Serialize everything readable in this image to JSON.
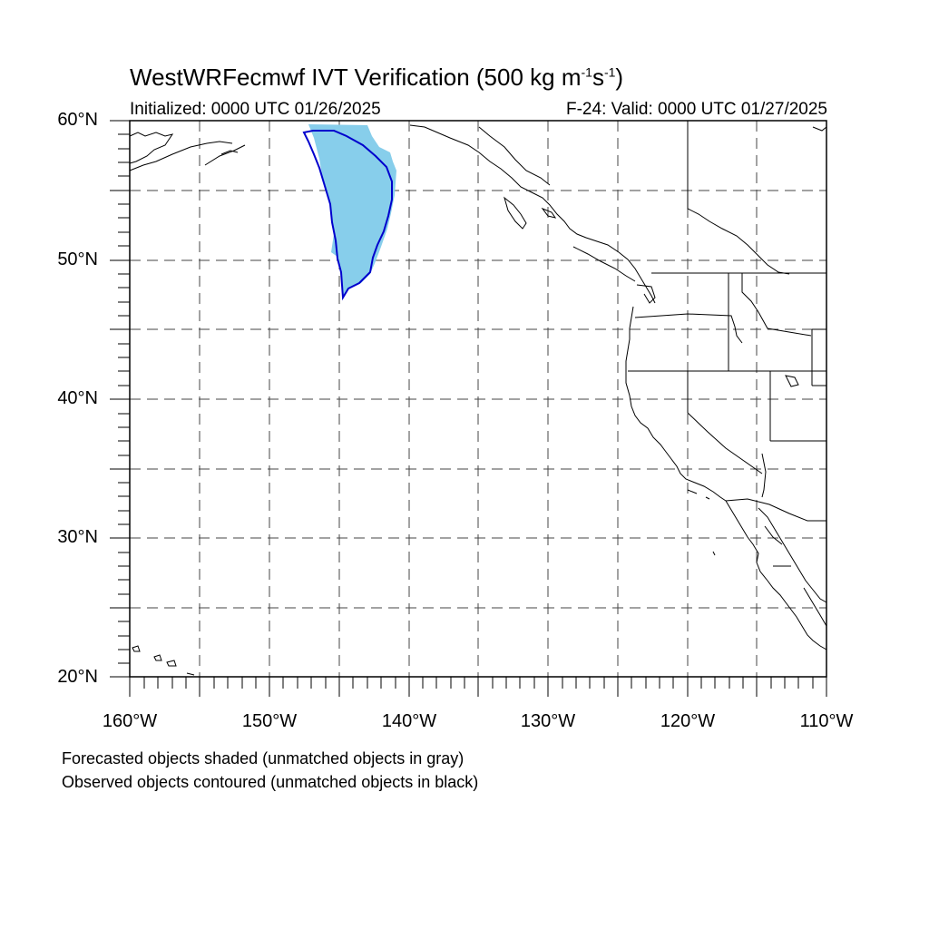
{
  "header": {
    "title_main": "WestWRFecmwf IVT Verification (500 kg m",
    "title_exp1": "-1",
    "title_mid": "s",
    "title_exp2": "-1",
    "title_end": ")",
    "initialized": "Initialized: 0000 UTC 01/26/2025",
    "valid": "F-24: Valid: 0000 UTC 01/27/2025"
  },
  "axes": {
    "lat_labels": [
      "60°N",
      "50°N",
      "40°N",
      "30°N",
      "20°N"
    ],
    "lon_labels": [
      "160°W",
      "150°W",
      "140°W",
      "130°W",
      "120°W",
      "110°W"
    ]
  },
  "footnotes": {
    "line1": "Forecasted objects shaded (unmatched objects in gray)",
    "line2": "Observed objects contoured (unmatched objects in black)"
  },
  "colors": {
    "forecast_fill": "#87ceeb",
    "observed_contour": "#0000cd",
    "coastline": "#000000",
    "grid": "#444444"
  }
}
